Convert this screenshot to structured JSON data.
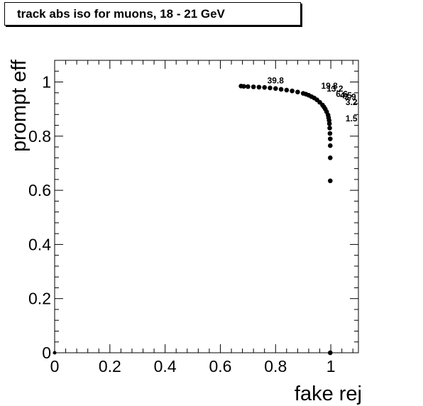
{
  "title": "track abs iso for muons, 18 - 21 GeV",
  "chart_data": {
    "type": "scatter",
    "title": "track abs iso for muons, 18 - 21 GeV",
    "xlabel": "fake rej",
    "ylabel": "prompt eff",
    "xlim": [
      0,
      1.1
    ],
    "ylim": [
      0,
      1.08
    ],
    "x_ticks": [
      0,
      0.2,
      0.4,
      0.6,
      0.8,
      1
    ],
    "x_tick_labels": [
      "0",
      "0.2",
      "0.4",
      "0.6",
      "0.8",
      "1"
    ],
    "y_ticks": [
      0,
      0.2,
      0.4,
      0.6,
      0.8,
      1
    ],
    "y_tick_labels": [
      "0",
      "0.2",
      "0.4",
      "0.6",
      "0.8",
      "1"
    ],
    "grid": false,
    "series": [
      {
        "x": [
          0.0,
          0.675,
          0.685,
          0.7,
          0.72,
          0.74,
          0.76,
          0.78,
          0.8,
          0.82,
          0.84,
          0.86,
          0.88,
          0.9,
          0.91,
          0.92,
          0.93,
          0.94,
          0.95,
          0.96,
          0.97,
          0.975,
          0.98,
          0.985,
          0.99,
          0.992,
          0.994,
          0.995,
          0.996,
          0.997,
          0.998,
          0.998,
          0.998,
          0.998,
          0.998
        ],
        "y": [
          0.0,
          0.985,
          0.984,
          0.983,
          0.982,
          0.981,
          0.98,
          0.978,
          0.976,
          0.973,
          0.97,
          0.967,
          0.963,
          0.958,
          0.955,
          0.951,
          0.946,
          0.941,
          0.934,
          0.925,
          0.915,
          0.908,
          0.9,
          0.89,
          0.878,
          0.868,
          0.858,
          0.846,
          0.83,
          0.81,
          0.79,
          0.765,
          0.72,
          0.635,
          0.0
        ]
      }
    ],
    "annotations": [
      {
        "text": "39.8",
        "x": 0.8,
        "y": 0.995
      },
      {
        "text": "19.8",
        "x": 0.995,
        "y": 0.975
      },
      {
        "text": "13.2",
        "x": 1.015,
        "y": 0.965
      },
      {
        "text": "6.6",
        "x": 1.04,
        "y": 0.945
      },
      {
        "text": "4.5",
        "x": 1.055,
        "y": 0.94
      },
      {
        "text": "3.9",
        "x": 1.07,
        "y": 0.935
      },
      {
        "text": "3.2",
        "x": 1.075,
        "y": 0.915
      },
      {
        "text": "1.5",
        "x": 1.075,
        "y": 0.855
      }
    ]
  }
}
